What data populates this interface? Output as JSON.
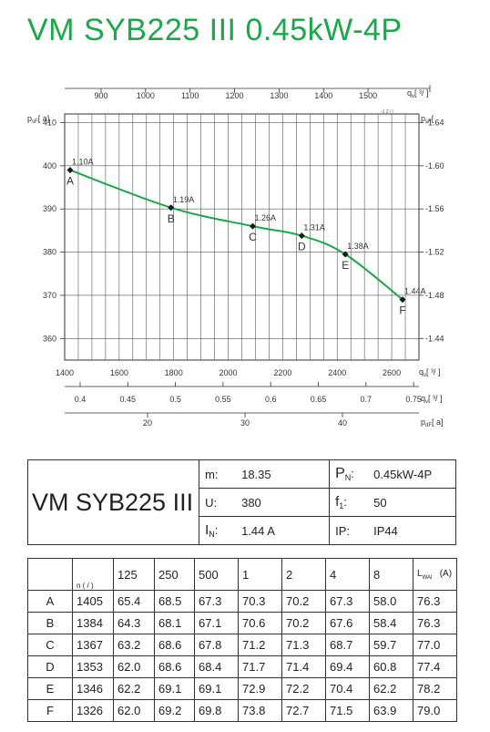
{
  "title": "VM SYB225 III 0.45kW-4P",
  "chart_data": {
    "type": "line",
    "title": "VM SYB225 III 0.45kW-4P",
    "left_axis_label": "p",
    "left_axis_label_sub": "sF",
    "left_axis_label_unit": "[   a]",
    "right_axis_label": "p",
    "right_axis_label_sub": "sF",
    "right_axis_label_unit": "[",
    "left_ylim": [
      355,
      412
    ],
    "left_ticks": [
      "410",
      "400",
      "390",
      "380",
      "370",
      "360"
    ],
    "right_ticks": [
      "1.64",
      "1.60",
      "1.56",
      "1.52",
      "1.48",
      "1.44"
    ],
    "right_tick_prefix": "-",
    "top_axis_label": "q",
    "top_axis_label_sub": "v",
    "top_axis_label_unit": "[   ³/       ]",
    "top_axis_extra": "-1 2  /    /",
    "top_ticks": [
      "900",
      "1000",
      "1100",
      "1200",
      "1300",
      "1400",
      "1500"
    ],
    "bottom_axis_label": "q",
    "bottom_axis_label_sub": "v",
    "bottom_axis_label_unit": "[   ³/   ]",
    "bottom_ticks": [
      "1400",
      "1600",
      "1800",
      "2000",
      "2200",
      "2400",
      "2600"
    ],
    "xlim": [
      1400,
      2700
    ],
    "second_axis_label": "q",
    "second_axis_label_sub": "v",
    "second_axis_label_unit": "[   ³/   ]",
    "second_ticks": [
      "0.4",
      "0.45",
      "0.5",
      "0.55",
      "0.6",
      "0.65",
      "0.7",
      "0.75"
    ],
    "third_axis_label": "p",
    "third_axis_label_sub": "dF",
    "third_axis_label_unit": "[   a]",
    "third_ticks": [
      "20",
      "30",
      "40"
    ],
    "series": [
      {
        "points": [
          {
            "x": 1420,
            "y": 399.0,
            "label": "A",
            "current": "1.10A"
          },
          {
            "x": 1790,
            "y": 390.3,
            "label": "B",
            "current": "1.19A"
          },
          {
            "x": 2090,
            "y": 386.0,
            "label": "C",
            "current": "1.26A"
          },
          {
            "x": 2270,
            "y": 383.8,
            "label": "D",
            "current": "1.31A"
          },
          {
            "x": 2430,
            "y": 379.5,
            "label": "E",
            "current": "1.38A"
          },
          {
            "x": 2640,
            "y": 369.0,
            "label": "F",
            "current": "1.44A"
          }
        ]
      }
    ],
    "line_color": "#1ba84a",
    "grid": true
  },
  "specs": {
    "model": "VM SYB225 III",
    "m_label": "m:",
    "m_value": "18.35",
    "pn_label": "P",
    "pn_sub": "N",
    "pn_colon": ":",
    "pn_value": "0.45kW-4P",
    "u_label": "U:",
    "u_value": "380",
    "f_label": "f",
    "f_sub": "1",
    "f_colon": ":",
    "f_value": "50",
    "in_label": "I",
    "in_sub": "N",
    "in_colon": ":",
    "in_value": "1.44  A",
    "ip_label": "IP:",
    "ip_value": "IP44"
  },
  "noise_table": {
    "corner_label": "n (  /  )",
    "headers": [
      "125",
      "250",
      "500",
      "1",
      "2",
      "4",
      "8"
    ],
    "lwa_label": "L",
    "lwa_sub": "WAl",
    "lwa_unit": "(A)",
    "rows": [
      {
        "label": "A",
        "n": "1405",
        "values": [
          "65.4",
          "68.5",
          "67.3",
          "70.3",
          "70.2",
          "67.3",
          "58.0"
        ],
        "lwa": "76.3"
      },
      {
        "label": "B",
        "n": "1384",
        "values": [
          "64.3",
          "68.1",
          "67.1",
          "70.6",
          "70.2",
          "67.6",
          "58.4"
        ],
        "lwa": "76.3"
      },
      {
        "label": "C",
        "n": "1367",
        "values": [
          "63.2",
          "68.6",
          "67.8",
          "71.2",
          "71.3",
          "68.7",
          "59.7"
        ],
        "lwa": "77.0"
      },
      {
        "label": "D",
        "n": "1353",
        "values": [
          "62.0",
          "68.6",
          "68.4",
          "71.7",
          "71.4",
          "69.4",
          "60.8"
        ],
        "lwa": "77.4"
      },
      {
        "label": "E",
        "n": "1346",
        "values": [
          "62.2",
          "69.1",
          "69.1",
          "72.9",
          "72.2",
          "70.4",
          "62.2"
        ],
        "lwa": "78.2"
      },
      {
        "label": "F",
        "n": "1326",
        "values": [
          "62.0",
          "69.2",
          "69.8",
          "73.8",
          "72.7",
          "71.5",
          "63.9"
        ],
        "lwa": "79.0"
      }
    ]
  }
}
